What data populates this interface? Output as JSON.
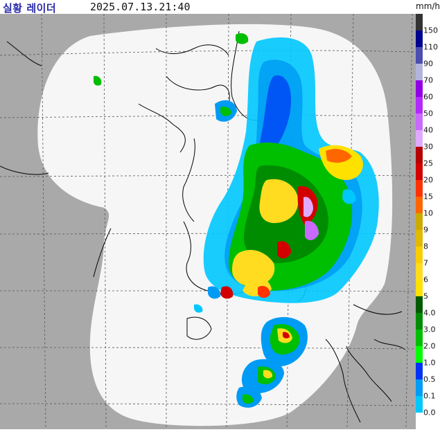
{
  "header": {
    "title": "실황 레이더",
    "timestamp": "2025.07.13.21:40",
    "unit": "mm/h"
  },
  "legend": {
    "segments": [
      {
        "label": "150",
        "color": "#333333"
      },
      {
        "label": "110",
        "color": "#000390"
      },
      {
        "label": "90",
        "color": "#4c4eb1"
      },
      {
        "label": "70",
        "color": "#b3b4de"
      },
      {
        "label": "60",
        "color": "#9300e4"
      },
      {
        "label": "50",
        "color": "#b329ff"
      },
      {
        "label": "40",
        "color": "#c969ff"
      },
      {
        "label": "30",
        "color": "#e0a9ff"
      },
      {
        "label": "25",
        "color": "#b40000"
      },
      {
        "label": "20",
        "color": "#d20000"
      },
      {
        "label": "15",
        "color": "#ff3200"
      },
      {
        "label": "10",
        "color": "#ff6600"
      },
      {
        "label": "9",
        "color": "#ccaa00"
      },
      {
        "label": "8",
        "color": "#e0b900"
      },
      {
        "label": "7",
        "color": "#f9cd00"
      },
      {
        "label": "6",
        "color": "#ffdc1f"
      },
      {
        "label": "5",
        "color": "#ffe100"
      },
      {
        "label": "4.0",
        "color": "#005a00"
      },
      {
        "label": "3.0",
        "color": "#008c00"
      },
      {
        "label": "2.0",
        "color": "#00be00"
      },
      {
        "label": "1.0",
        "color": "#00ff00"
      },
      {
        "label": "0.5",
        "color": "#0033f5"
      },
      {
        "label": "0.1",
        "color": "#009bf5"
      },
      {
        "label": "0.0",
        "color": "#00c8ff"
      }
    ],
    "zero_color": "#ffffff"
  },
  "map": {
    "land_color": "#a9a9a9",
    "coverage_color": "#f5f5f5",
    "coastline_color": "#000000",
    "grid_color": "#555555"
  }
}
